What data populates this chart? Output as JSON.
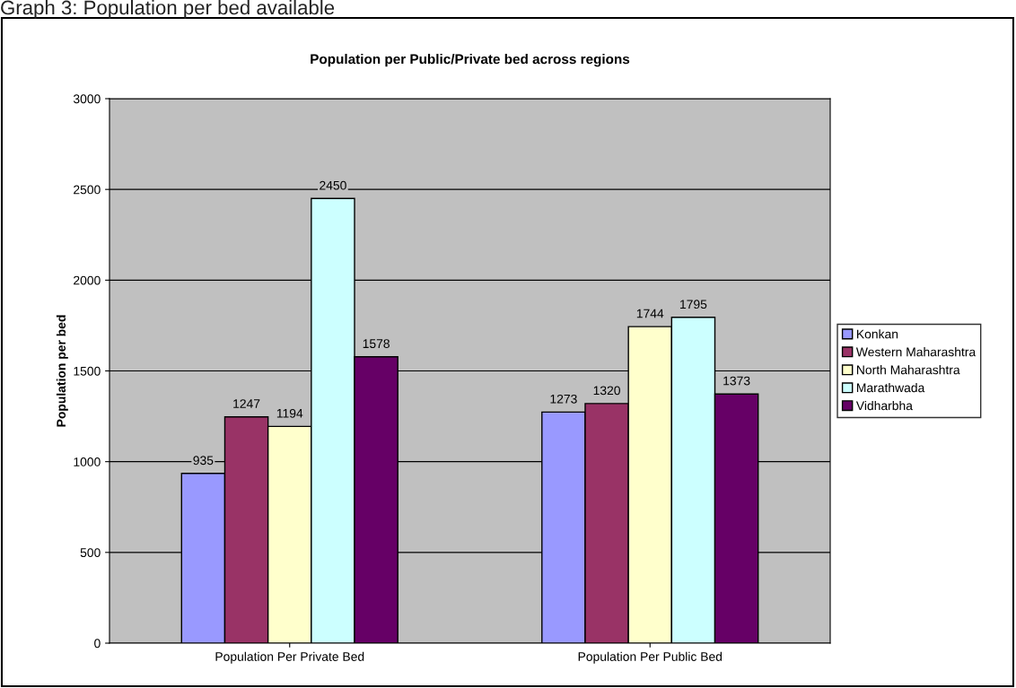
{
  "chart_data": {
    "type": "bar",
    "title": "Population per Public/Private bed across regions",
    "ylabel": "Population per bed",
    "annotations": [
      "Graph 3: Population per bed available"
    ],
    "categories": [
      "Population Per Private Bed",
      "Population Per Public Bed"
    ],
    "series": [
      {
        "name": "Konkan",
        "color": "#9999ff",
        "values": [
          935,
          1273
        ]
      },
      {
        "name": "Western Maharashtra",
        "color": "#993366",
        "values": [
          1247,
          1320
        ]
      },
      {
        "name": "North Maharashtra",
        "color": "#ffffcc",
        "values": [
          1194,
          1744
        ]
      },
      {
        "name": "Marathwada",
        "color": "#ccffff",
        "values": [
          2450,
          1795
        ]
      },
      {
        "name": "Vidharbha",
        "color": "#660066",
        "values": [
          1578,
          1373
        ]
      }
    ],
    "ylim": [
      0,
      3000
    ],
    "yticks": [
      0,
      500,
      1000,
      1500,
      2000,
      2500,
      3000
    ],
    "grid": "y",
    "legend": "right",
    "data_labels": true
  }
}
